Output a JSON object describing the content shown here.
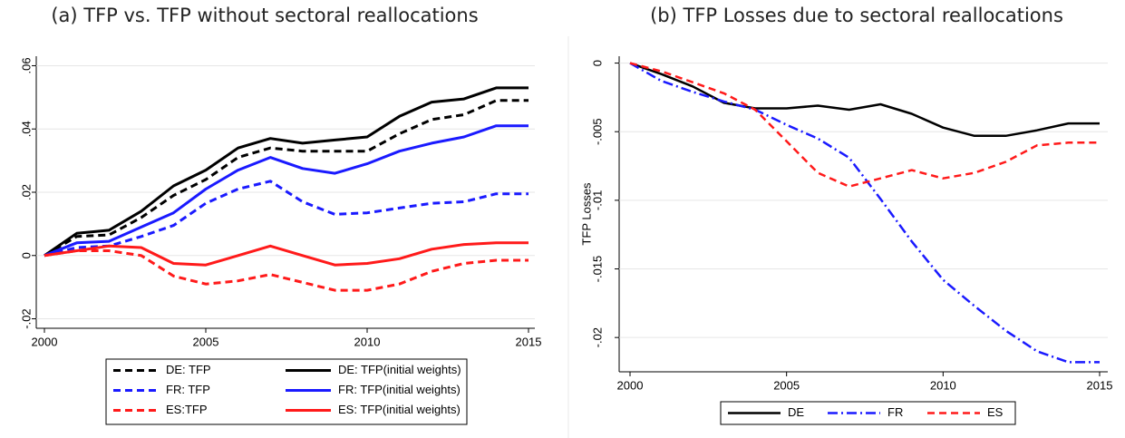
{
  "chart_data": [
    {
      "type": "line",
      "title": "(a) TFP vs. TFP without sectoral reallocations",
      "x": [
        2000,
        2001,
        2002,
        2003,
        2004,
        2005,
        2006,
        2007,
        2008,
        2009,
        2010,
        2011,
        2012,
        2013,
        2014,
        2015
      ],
      "xlim": [
        2000,
        2015
      ],
      "xticks": [
        2000,
        2005,
        2010,
        2015
      ],
      "ylim": [
        -0.023,
        0.063
      ],
      "yticks": [
        {
          "value": -0.02,
          "label": "-.02"
        },
        0,
        {
          "value": 0.02,
          "label": ".02"
        },
        {
          "value": 0.04,
          "label": ".04"
        },
        {
          "value": 0.06,
          "label": ".06"
        }
      ],
      "grid": true,
      "legend": "bottom",
      "series": [
        {
          "name": "DE: TFP",
          "color": "#000000",
          "style": "dashed",
          "values": [
            0,
            0.006,
            0.0065,
            0.012,
            0.019,
            0.024,
            0.031,
            0.034,
            0.033,
            0.033,
            0.033,
            0.0385,
            0.043,
            0.0445,
            0.049,
            0.049
          ]
        },
        {
          "name": "DE: TFP(initial weights)",
          "color": "#000000",
          "style": "solid",
          "values": [
            0,
            0.007,
            0.008,
            0.014,
            0.022,
            0.027,
            0.034,
            0.037,
            0.0355,
            0.0365,
            0.0375,
            0.044,
            0.0485,
            0.0495,
            0.053,
            0.053
          ]
        },
        {
          "name": "FR: TFP",
          "color": "#1a1aff",
          "style": "dashed",
          "values": [
            0,
            0.0025,
            0.003,
            0.006,
            0.0095,
            0.0165,
            0.021,
            0.0235,
            0.017,
            0.013,
            0.0135,
            0.015,
            0.0165,
            0.017,
            0.0195,
            0.0195
          ]
        },
        {
          "name": "FR: TFP(initial weights)",
          "color": "#1a1aff",
          "style": "solid",
          "values": [
            0,
            0.004,
            0.0045,
            0.009,
            0.0135,
            0.021,
            0.027,
            0.031,
            0.0275,
            0.026,
            0.029,
            0.033,
            0.0355,
            0.0375,
            0.041,
            0.041
          ]
        },
        {
          "name": "ES:TFP",
          "color": "#ff1a1a",
          "style": "dashed",
          "values": [
            0,
            0.0015,
            0.0015,
            0,
            -0.0065,
            -0.009,
            -0.008,
            -0.006,
            -0.0085,
            -0.011,
            -0.011,
            -0.009,
            -0.005,
            -0.0025,
            -0.0015,
            -0.0015
          ]
        },
        {
          "name": "ES: TFP(initial weights)",
          "color": "#ff1a1a",
          "style": "solid",
          "values": [
            0,
            0.0015,
            0.003,
            0.0025,
            -0.0025,
            -0.003,
            0,
            0.003,
            0,
            -0.003,
            -0.0025,
            -0.001,
            0.002,
            0.0035,
            0.004,
            0.004
          ]
        }
      ]
    },
    {
      "type": "line",
      "title": "(b) TFP Losses due to sectoral reallocations",
      "ylabel": "TFP Losses",
      "x": [
        2000,
        2001,
        2002,
        2003,
        2004,
        2005,
        2006,
        2007,
        2008,
        2009,
        2010,
        2011,
        2012,
        2013,
        2014,
        2015
      ],
      "xlim": [
        2000,
        2015
      ],
      "xticks": [
        2000,
        2005,
        2010,
        2015
      ],
      "ylim": [
        -0.0225,
        0.0005
      ],
      "yticks": [
        {
          "value": -0.02,
          "label": "-.02"
        },
        {
          "value": -0.015,
          "label": "-.015"
        },
        {
          "value": -0.01,
          "label": "-.01"
        },
        {
          "value": -0.005,
          "label": "-.005"
        },
        0
      ],
      "grid": true,
      "legend": "bottom",
      "series": [
        {
          "name": "DE",
          "color": "#000000",
          "style": "solid",
          "values": [
            0,
            -0.0008,
            -0.0017,
            -0.0029,
            -0.0033,
            -0.0033,
            -0.0031,
            -0.0034,
            -0.003,
            -0.0037,
            -0.0047,
            -0.0053,
            -0.0053,
            -0.0049,
            -0.0044,
            -0.0044
          ]
        },
        {
          "name": "FR",
          "color": "#1a1aff",
          "style": "dashdot",
          "values": [
            0,
            -0.0013,
            -0.0021,
            -0.0028,
            -0.0034,
            -0.0045,
            -0.0055,
            -0.0069,
            -0.0099,
            -0.013,
            -0.0158,
            -0.0177,
            -0.0195,
            -0.021,
            -0.0218,
            -0.0218
          ]
        },
        {
          "name": "ES",
          "color": "#ff1a1a",
          "style": "dashed",
          "values": [
            0,
            -0.0006,
            -0.0014,
            -0.0022,
            -0.0034,
            -0.0057,
            -0.008,
            -0.009,
            -0.0084,
            -0.0078,
            -0.0084,
            -0.008,
            -0.0072,
            -0.006,
            -0.0058,
            -0.0058
          ]
        }
      ]
    }
  ]
}
